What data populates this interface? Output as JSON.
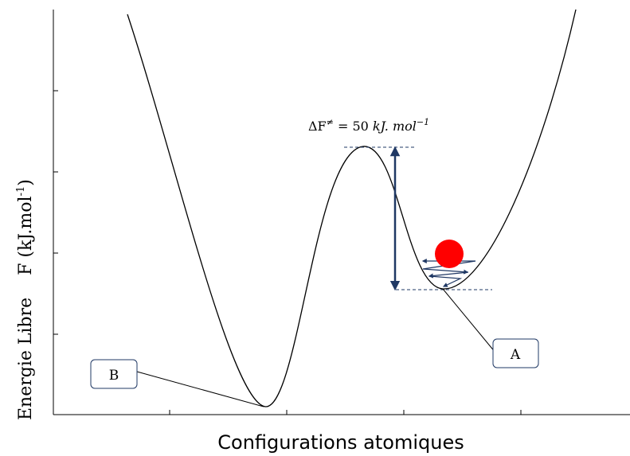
{
  "diagram": {
    "y_axis_label": "Energie Libre    F (kJ.mol",
    "y_axis_label_sup": "-1",
    "y_axis_label_end": ")",
    "x_axis_label": "Configurations atomiques",
    "barrier_label": {
      "prefix": "ΔF",
      "superscript": "≠",
      "equals": " = 50 ",
      "unit": "kJ. mol",
      "unit_sup": "−1"
    },
    "callout_a": "A",
    "callout_b": "B",
    "colors": {
      "curve": "#000000",
      "arrow": "#1f3864",
      "ball": "#ff0000",
      "dashed": "#1f3864",
      "callout_border": "#1f3864"
    }
  }
}
